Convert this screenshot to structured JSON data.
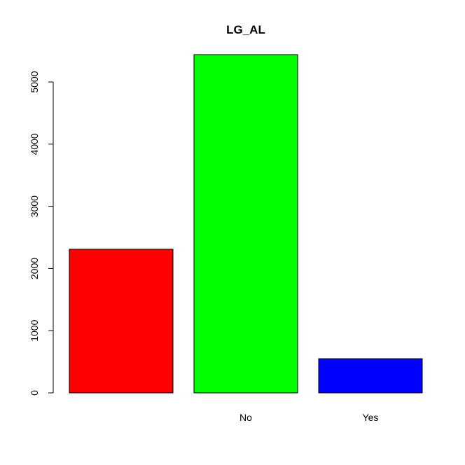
{
  "chart_data": {
    "type": "bar",
    "title": "LG_AL",
    "xlabel": "",
    "ylabel": "",
    "categories": [
      "",
      "No",
      "Yes"
    ],
    "values": [
      2310,
      5440,
      550
    ],
    "colors": [
      "#FF0000",
      "#00FF00",
      "#0000FF"
    ],
    "yticks": [
      0,
      1000,
      2000,
      3000,
      4000,
      5000
    ],
    "ylim": [
      0,
      5440
    ],
    "grid": false,
    "legend": "none"
  }
}
